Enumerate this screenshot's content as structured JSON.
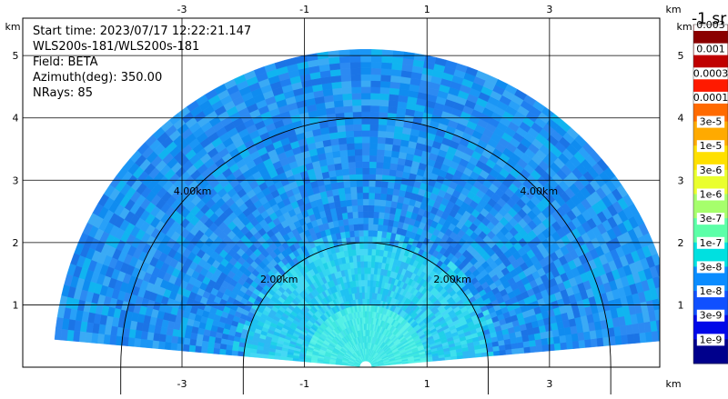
{
  "info": {
    "start_time": "Start time: 2023/07/17 12:22:21.147",
    "instrument": "WLS200s-181/WLS200s-181",
    "field": "Field: BETA",
    "azimuth": "Azimuth(deg): 350.00",
    "nrays": "NRays: 85"
  },
  "colorbar": {
    "unit": "-1 sr",
    "labels": [
      "0.003",
      "0.001",
      "0.0003",
      "0.0001",
      "3e-5",
      "1e-5",
      "3e-6",
      "1e-6",
      "3e-7",
      "1e-7",
      "3e-8",
      "1e-8",
      "3e-9",
      "1e-9"
    ],
    "colors": [
      "#8b0000",
      "#c00000",
      "#ff1a00",
      "#ff6a00",
      "#ffaa00",
      "#ffe000",
      "#eaff2e",
      "#a6ff6c",
      "#5cffa8",
      "#00e0e0",
      "#0a8cff",
      "#1050ff",
      "#0008e8",
      "#00008c"
    ]
  },
  "chart_data": {
    "type": "heatmap",
    "subtype": "range-height-indicator",
    "x_unit": "km",
    "y_unit": "km",
    "xlim": [
      -5.6,
      4.8
    ],
    "ylim": [
      0,
      5.6
    ],
    "x_ticks": [
      -3,
      -1,
      1,
      3
    ],
    "x_tick_labels": [
      "-3",
      "-1",
      "1",
      "3"
    ],
    "y_ticks": [
      1,
      2,
      3,
      4,
      5
    ],
    "y_tick_labels": [
      "1",
      "2",
      "3",
      "4",
      "5"
    ],
    "range_rings_km": [
      2,
      4
    ],
    "range_ring_labels": [
      "2.00km",
      "4.00km"
    ],
    "max_range_km": 5.1,
    "elevation_range_deg": [
      5,
      175
    ],
    "nrays": 85,
    "azimuth_deg": 350.0,
    "field": "BETA",
    "color_scale": "log",
    "value_range": [
      1e-09,
      0.003
    ],
    "grid": true,
    "description_bands": [
      {
        "range_km": [
          0.0,
          0.25
        ],
        "value": "3e-8"
      },
      {
        "range_km": [
          0.25,
          2.0
        ],
        "value": "1e-7"
      },
      {
        "range_km": [
          2.0,
          5.1
        ],
        "value": "3e-8"
      }
    ]
  }
}
